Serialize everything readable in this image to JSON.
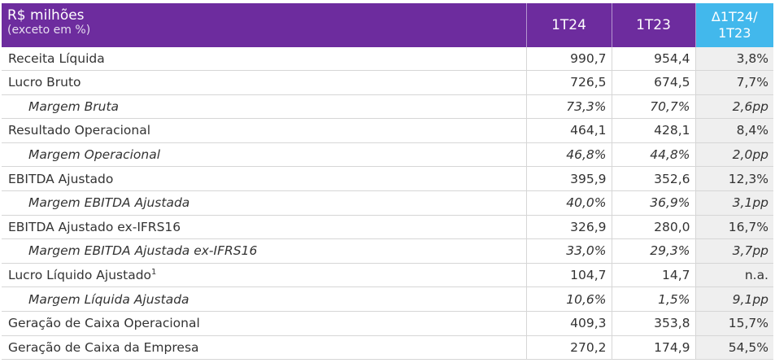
{
  "header": {
    "title": "R$ milhões",
    "subtitle": "(exceto em %)",
    "col1": "1T24",
    "col2": "1T23",
    "col3_line1": "Δ1T24/",
    "col3_line2": "1T23"
  },
  "colors": {
    "header_bg": "#6d2c9e",
    "delta_header_bg": "#42b8ec",
    "delta_col_bg": "#efefef"
  },
  "rows": [
    {
      "label": "Receita Líquida",
      "v1": "990,7",
      "v2": "954,4",
      "delta": "3,8%",
      "sub": false
    },
    {
      "label": "Lucro Bruto",
      "v1": "726,5",
      "v2": "674,5",
      "delta": "7,7%",
      "sub": false
    },
    {
      "label": "Margem Bruta",
      "v1": "73,3%",
      "v2": "70,7%",
      "delta": "2,6pp",
      "sub": true
    },
    {
      "label": "Resultado Operacional",
      "v1": "464,1",
      "v2": "428,1",
      "delta": "8,4%",
      "sub": false
    },
    {
      "label": "Margem Operacional",
      "v1": "46,8%",
      "v2": "44,8%",
      "delta": "2,0pp",
      "sub": true
    },
    {
      "label": "EBITDA Ajustado",
      "v1": "395,9",
      "v2": "352,6",
      "delta": "12,3%",
      "sub": false
    },
    {
      "label": "Margem EBITDA Ajustada",
      "v1": "40,0%",
      "v2": "36,9%",
      "delta": "3,1pp",
      "sub": true
    },
    {
      "label": "EBITDA Ajustado ex-IFRS16",
      "v1": "326,9",
      "v2": "280,0",
      "delta": "16,7%",
      "sub": false
    },
    {
      "label": "Margem EBITDA Ajustada ex-IFRS16",
      "v1": "33,0%",
      "v2": "29,3%",
      "delta": "3,7pp",
      "sub": true
    },
    {
      "label": "Lucro Líquido Ajustado",
      "footnote": "1",
      "v1": "104,7",
      "v2": "14,7",
      "delta": "n.a.",
      "sub": false
    },
    {
      "label": "Margem Líquida Ajustada",
      "v1": "10,6%",
      "v2": "1,5%",
      "delta": "9,1pp",
      "sub": true
    },
    {
      "label": "Geração de Caixa Operacional",
      "v1": "409,3",
      "v2": "353,8",
      "delta": "15,7%",
      "sub": false
    },
    {
      "label": "Geração de Caixa da Empresa",
      "v1": "270,2",
      "v2": "174,9",
      "delta": "54,5%",
      "sub": false
    }
  ]
}
